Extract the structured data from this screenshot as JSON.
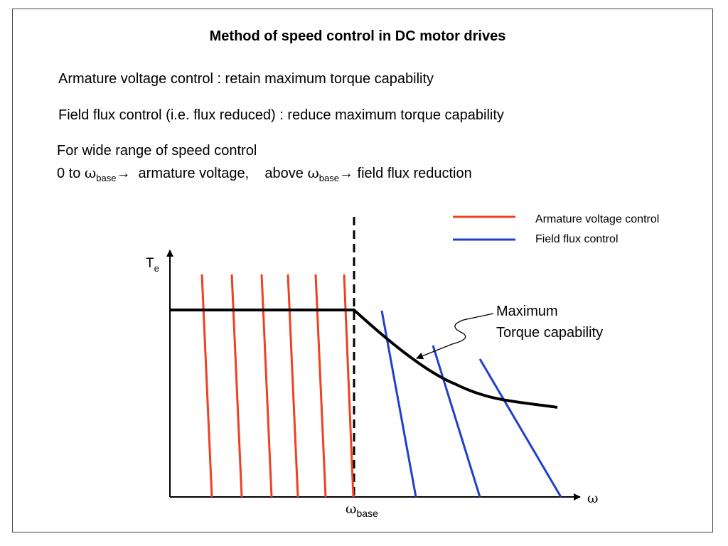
{
  "title": "Method of speed control in DC motor drives",
  "statements": {
    "armature": "Armature voltage control : retain maximum torque capability",
    "field": "Field flux control (i.e. flux reduced)  : reduce maximum torque capability",
    "wide_range": "For wide range of speed control",
    "range_prefix": "0 to ",
    "omega_symbol": "ω",
    "base_subscript": "base",
    "arrow_symbol": "→",
    "armature_range_text": "  armature voltage,    above ",
    "field_range_text": " field flux reduction"
  },
  "diagram": {
    "y_axis_symbol": "T",
    "y_axis_subscript": "e",
    "x_axis_symbol": "ω",
    "base_marker_symbol": "ω",
    "base_marker_subscript": "base",
    "annotation_line1": "Maximum",
    "annotation_line2": "Torque capability",
    "legend": [
      {
        "label": "Armature voltage control",
        "color": "#f04020"
      },
      {
        "label": "Field flux control",
        "color": "#1f3fcc"
      }
    ],
    "colors": {
      "armature": "#f04020",
      "field": "#1f3fcc",
      "envelope": "#000000"
    }
  }
}
